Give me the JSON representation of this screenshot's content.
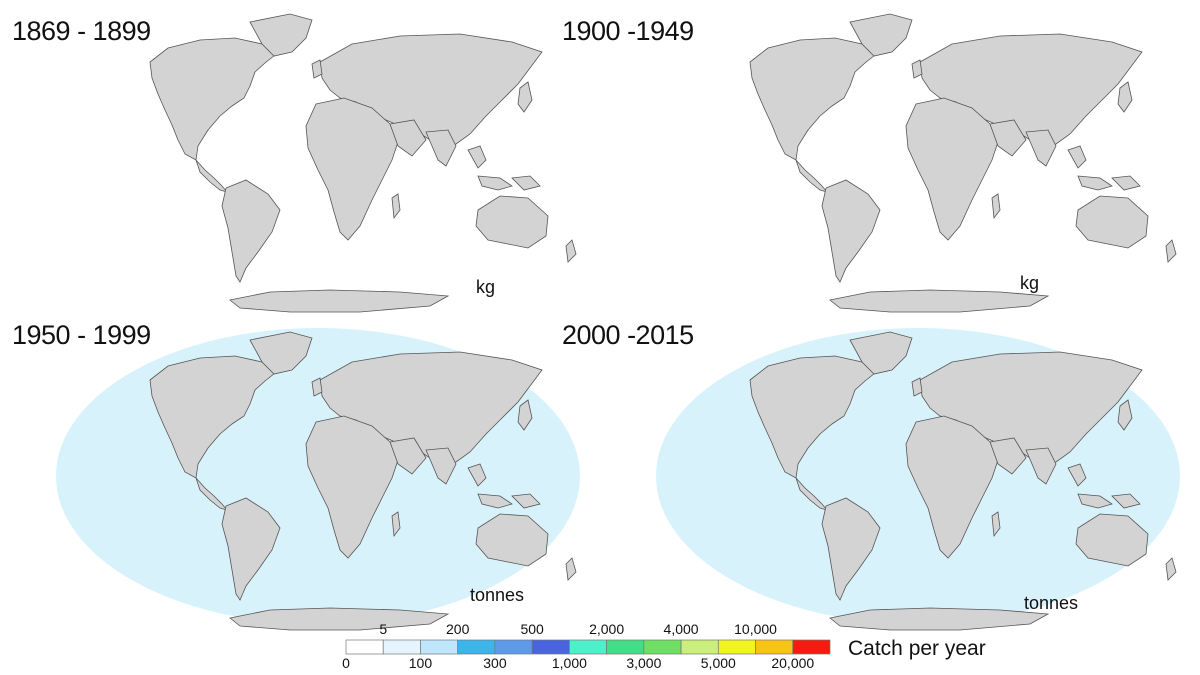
{
  "panels": [
    {
      "period": "1869 - 1899",
      "unit": "kg",
      "ocean_fill": false
    },
    {
      "period": "1900 -1949",
      "unit": "kg",
      "ocean_fill": false
    },
    {
      "period": "1950 - 1999",
      "unit": "tonnes",
      "ocean_fill": true
    },
    {
      "period": "2000 -2015",
      "unit": "tonnes",
      "ocean_fill": true
    }
  ],
  "legend": {
    "title": "Catch per year",
    "upper_ticks": [
      "5",
      "200",
      "500",
      "2,000",
      "4,000",
      "10,000"
    ],
    "lower_ticks": [
      "0",
      "100",
      "300",
      "1,000",
      "3,000",
      "5,000",
      "20,000"
    ],
    "colors": [
      "#ffffff",
      "#e6f4fd",
      "#bfe6fb",
      "#3db4ea",
      "#5d9be8",
      "#4a64e0",
      "#4ef0cc",
      "#42dd86",
      "#6de063",
      "#caef7a",
      "#f0f51f",
      "#f6c316",
      "#f41b0f"
    ]
  },
  "colors": {
    "land": "#d3d3d3",
    "coast": "#555555",
    "ocean_low": "#d8f2fb"
  }
}
